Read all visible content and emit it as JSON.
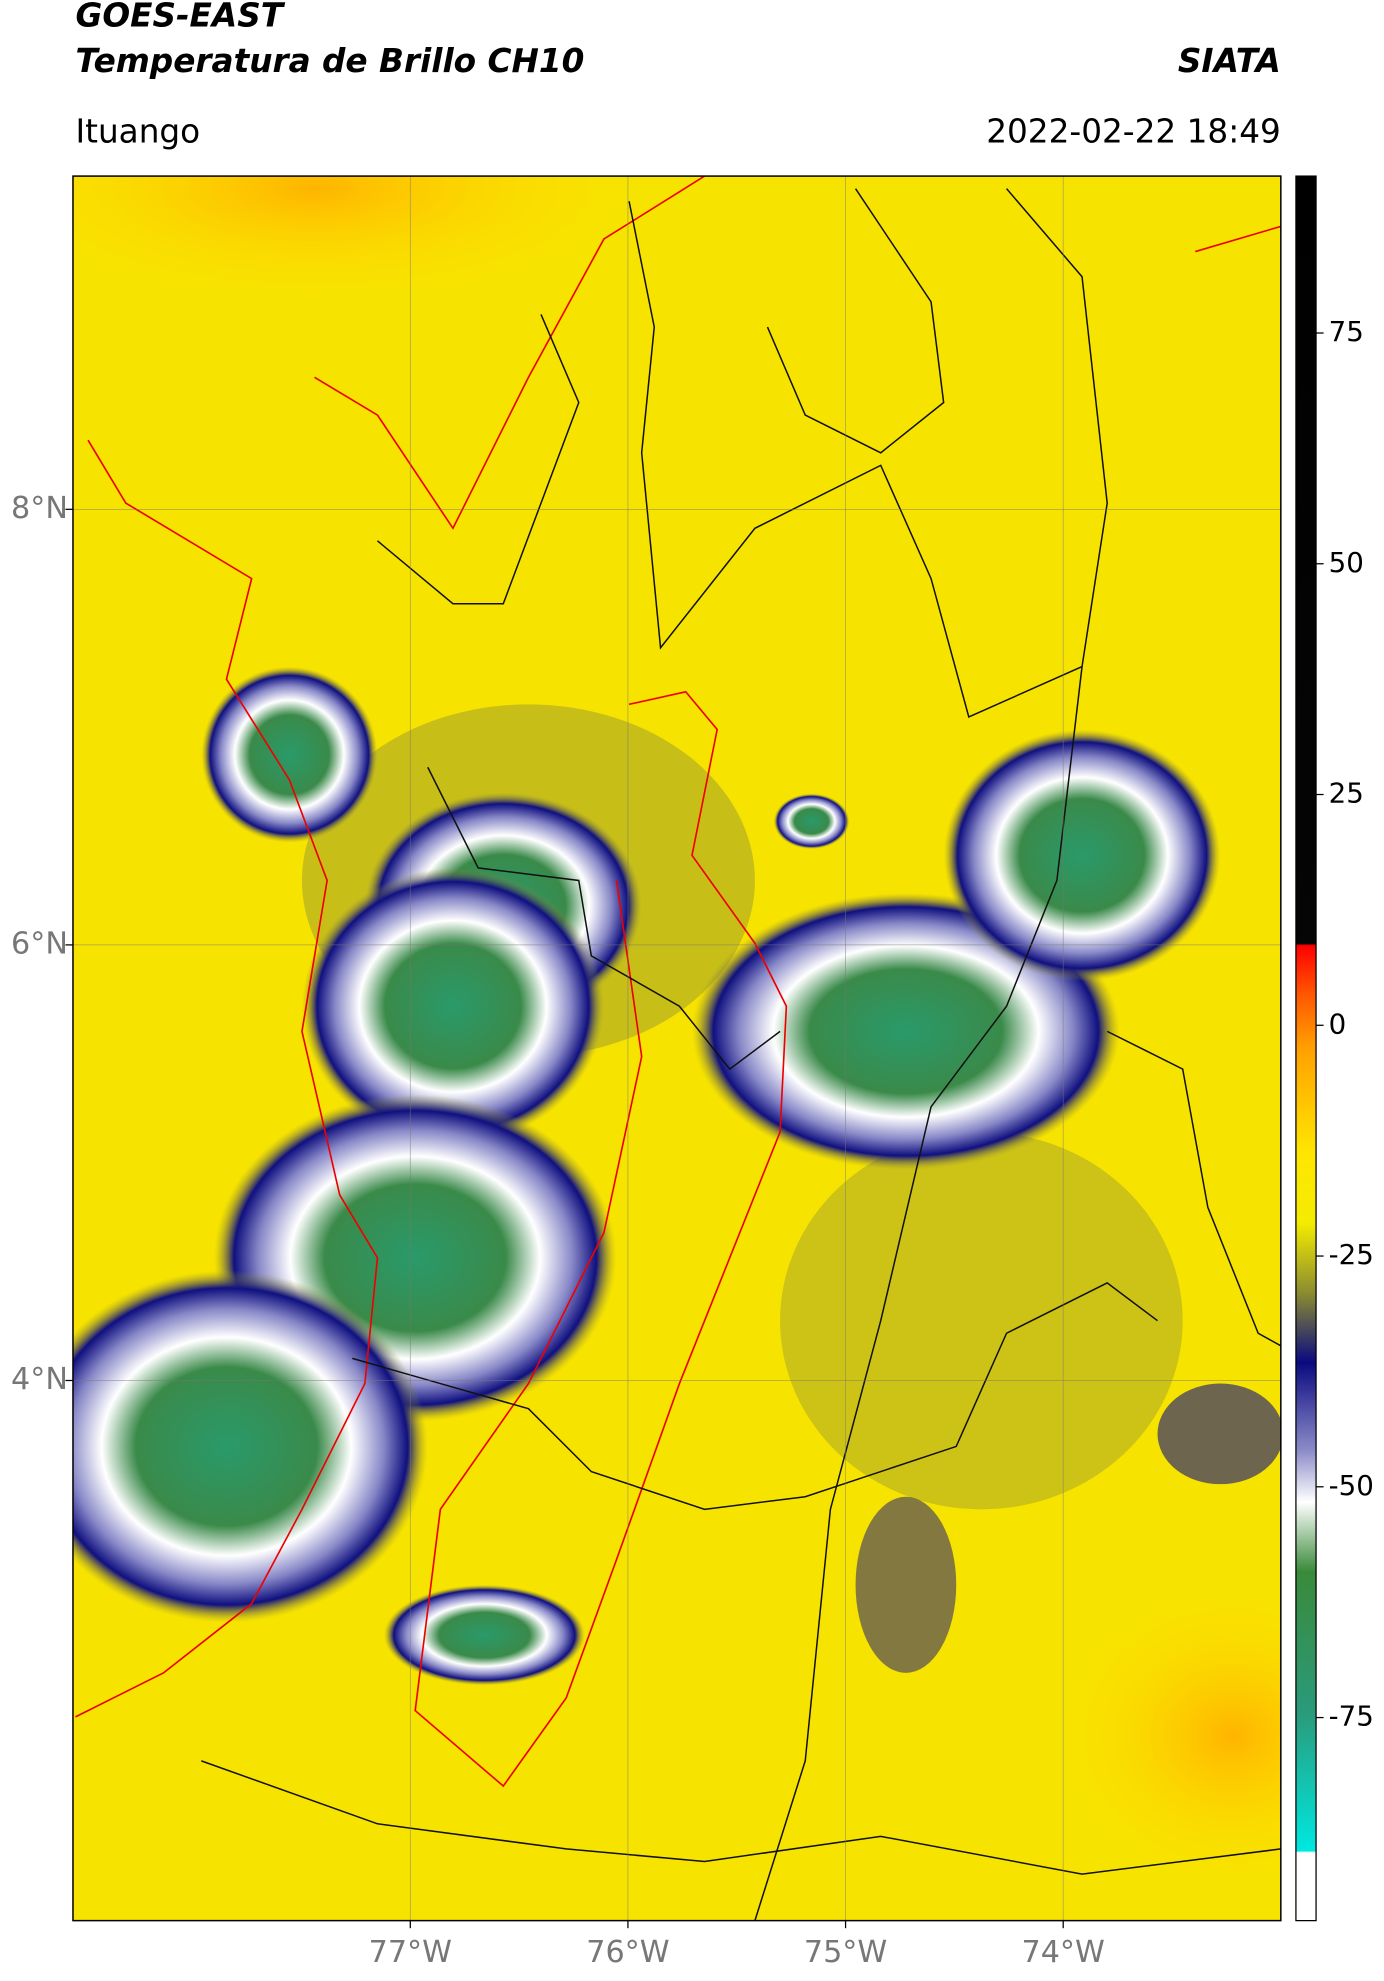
{
  "header": {
    "title": "GOES-EAST",
    "subtitle": "Temperatura de Brillo CH10",
    "org": "SIATA",
    "location": "Ituango",
    "datetime": "2022-02-22 18:49"
  },
  "chart_data": {
    "type": "map",
    "xlim": [
      -78.55,
      -73.0
    ],
    "ylim": [
      1.52,
      9.53
    ],
    "xticks": [
      {
        "value": -77,
        "label": "77°W"
      },
      {
        "value": -76,
        "label": "76°W"
      },
      {
        "value": -75,
        "label": "75°W"
      },
      {
        "value": -74,
        "label": "74°W"
      }
    ],
    "yticks": [
      {
        "value": 8,
        "label": "8°N"
      },
      {
        "value": 6,
        "label": "6°N"
      },
      {
        "value": 4,
        "label": "4°N"
      }
    ],
    "grid": true,
    "colorbar": {
      "lim": [
        -97,
        92
      ],
      "ticks": [
        75,
        50,
        25,
        0,
        -25,
        -50,
        -75
      ]
    }
  }
}
